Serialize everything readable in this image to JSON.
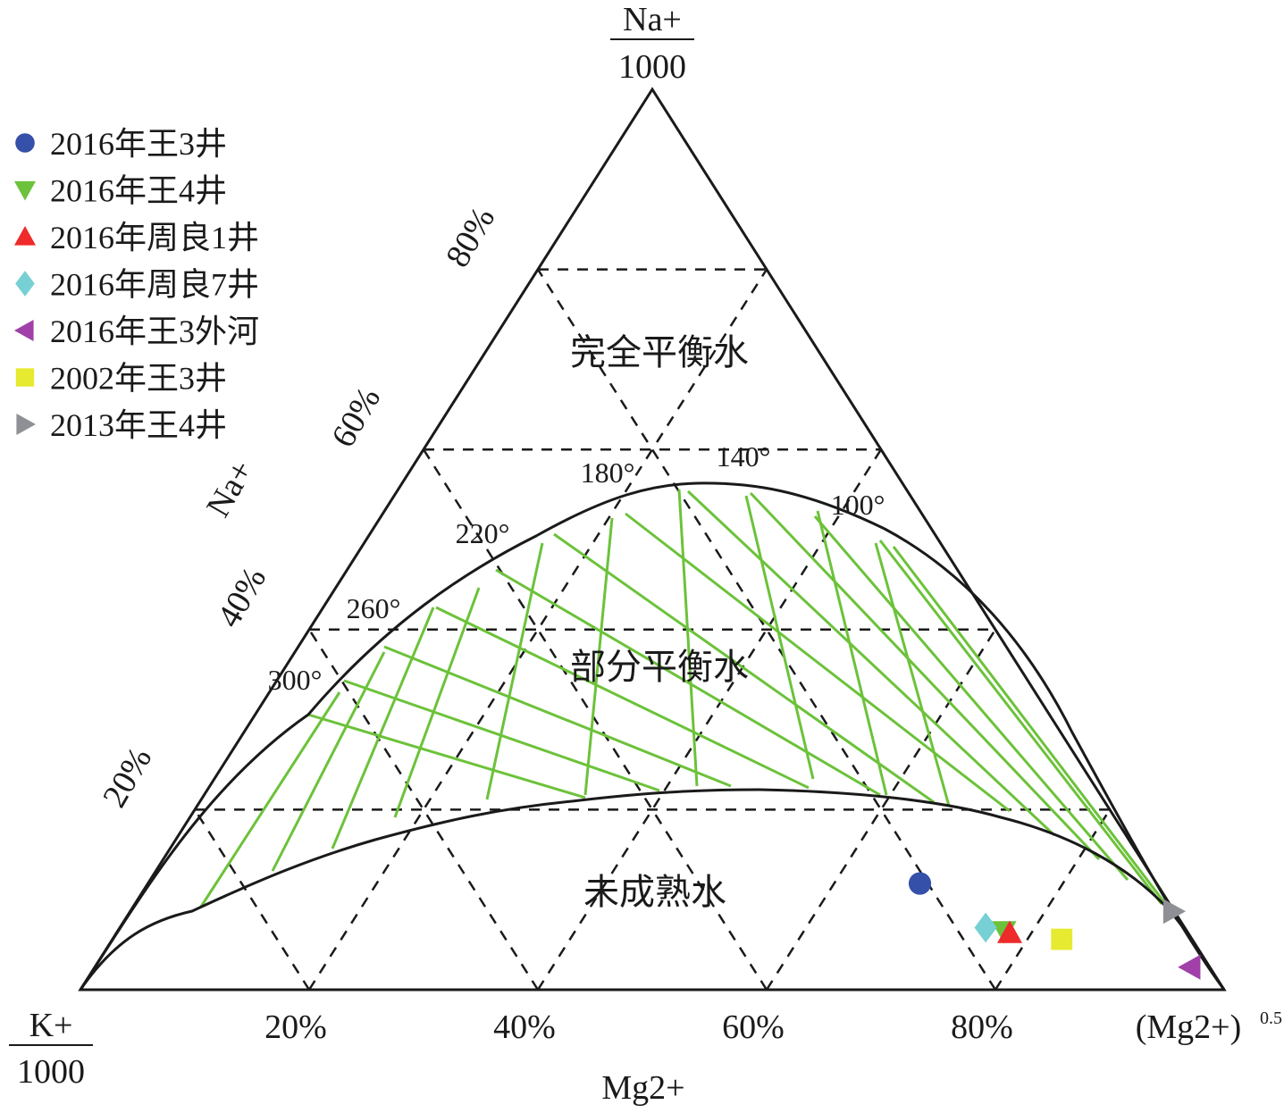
{
  "chart_data": {
    "type": "scatter",
    "subtype": "ternary",
    "axes": {
      "top": {
        "label": "Na+",
        "denominator": "1000"
      },
      "left_bottom": {
        "label": "K+",
        "denominator": "1000"
      },
      "right_bottom": {
        "label": "(Mg2+)",
        "exponent": "0.5"
      },
      "bottom_title": "Mg2+",
      "left_title": "Na+",
      "bottom_ticks": [
        "20%",
        "40%",
        "60%",
        "80%"
      ],
      "left_ticks": [
        "20%",
        "40%",
        "60%",
        "80%"
      ],
      "grid": "dashed, every 20%"
    },
    "regions": [
      "完全平衡水",
      "部分平衡水",
      "未成熟水"
    ],
    "isotherm_labels": [
      "300°",
      "260°",
      "220°",
      "180°",
      "140°",
      "100°"
    ],
    "legend_position": "top-left",
    "series": [
      {
        "name": "2016年王3井",
        "marker": "circle",
        "color": "#3550a8",
        "na": 0.118,
        "k": 0.207,
        "mg": 0.675
      },
      {
        "name": "2016年王4井",
        "marker": "triangle-down",
        "color": "#6cc23a",
        "na": 0.065,
        "k": 0.16,
        "mg": 0.775
      },
      {
        "name": "2016年周良1井",
        "marker": "triangle-up",
        "color": "#ee2a2a",
        "na": 0.063,
        "k": 0.156,
        "mg": 0.781
      },
      {
        "name": "2016年周良7井",
        "marker": "diamond",
        "color": "#76d0d4",
        "na": 0.069,
        "k": 0.174,
        "mg": 0.757
      },
      {
        "name": "2016年王3外河",
        "marker": "triangle-left",
        "color": "#a040a8",
        "na": 0.025,
        "k": 0.017,
        "mg": 0.958
      },
      {
        "name": "2002年王3井",
        "marker": "square",
        "color": "#e6ea30",
        "na": 0.056,
        "k": 0.114,
        "mg": 0.83
      },
      {
        "name": "2013年王4井",
        "marker": "triangle-right",
        "color": "#8e9096",
        "na": 0.087,
        "k": 0.001,
        "mg": 0.912
      }
    ]
  }
}
